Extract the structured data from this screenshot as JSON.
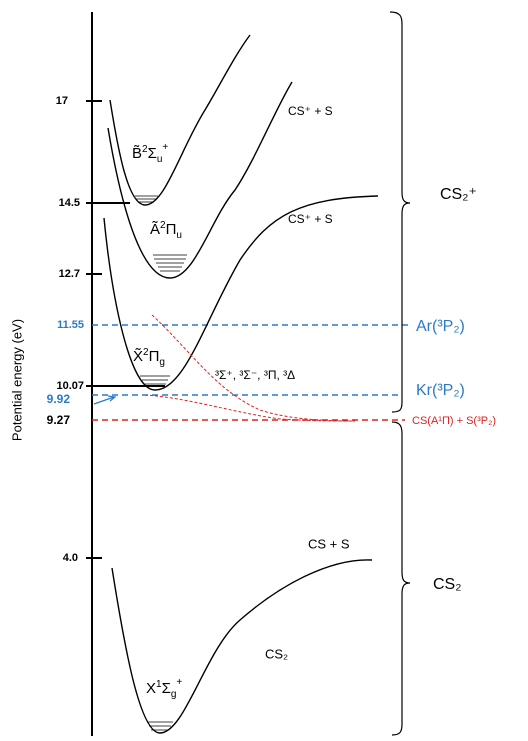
{
  "axis": {
    "title": "Potential energy (eV)",
    "ticks": [
      "17",
      "14.5",
      "12.7",
      "11.55",
      "10.07",
      "9.92",
      "9.27",
      "4.0"
    ]
  },
  "states": [
    {
      "letter": "B̃",
      "sup": "2",
      "term": "Σ",
      "sub": "u",
      "sup2": "+"
    },
    {
      "letter": "Ã",
      "sup": "2",
      "term": "Π",
      "sub": "u",
      "sup2": ""
    },
    {
      "letter": "X̃",
      "sup": "2",
      "term": "Π",
      "sub": "g",
      "sup2": ""
    },
    {
      "letter": "X",
      "sup": "1",
      "term": "Σ",
      "sub": "g",
      "sup2": "+"
    }
  ],
  "asymptotes": [
    "CS⁺ + S",
    "CS⁺ + S",
    "CS + S",
    "CS(A¹Π) + S(³P₂)"
  ],
  "molecule_labels": [
    "CS₂",
    "CS₂⁺",
    "CS₂"
  ],
  "dissociative_states": "³Σ⁺, ³Σ⁻, ³Π, ³Δ",
  "metastables": [
    "Ar(³P₂)",
    "Kr(³P₂)"
  ]
}
